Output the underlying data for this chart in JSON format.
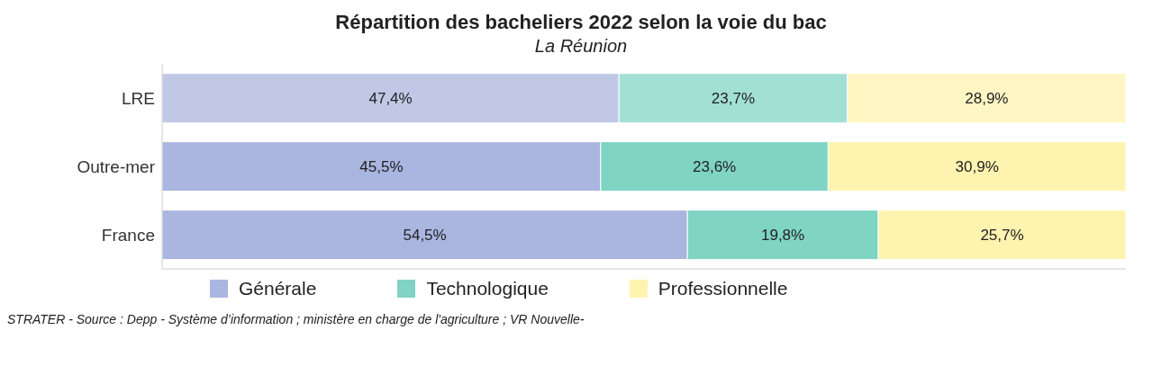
{
  "chart_data": {
    "type": "bar",
    "orientation": "horizontal",
    "stacked": true,
    "title": "Répartition des bacheliers 2022 selon la voie du bac",
    "subtitle": "La Réunion",
    "categories": [
      "LRE",
      "Outre-mer",
      "France"
    ],
    "series": [
      {
        "name": "Générale",
        "color": "#aab5e0",
        "colors": [
          "#c0c8e6",
          "#aab5e0",
          "#aab5e0"
        ],
        "values": [
          47.4,
          45.5,
          54.5
        ],
        "value_labels": [
          "47,4%",
          "45,5%",
          "54,5%"
        ]
      },
      {
        "name": "Technologique",
        "color": "#7fd4c4",
        "colors": [
          "#a3e0d4",
          "#7fd4c4",
          "#7fd4c4"
        ],
        "values": [
          23.7,
          23.6,
          19.8
        ],
        "value_labels": [
          "23,7%",
          "23,6%",
          "19,8%"
        ]
      },
      {
        "name": "Professionnelle",
        "color": "#fff3b0",
        "colors": [
          "#fff6c4",
          "#fff3b0",
          "#fff3b0"
        ],
        "values": [
          28.9,
          30.9,
          25.7
        ],
        "value_labels": [
          "28,9%",
          "30,9%",
          "25,7%"
        ]
      }
    ],
    "tick_labels": "y",
    "legend": "bottom",
    "annotations": [
      "STRATER - Source : Depp - Système d’information ; ministère en charge de l'agriculture ; VR Nouvelle-"
    ]
  }
}
